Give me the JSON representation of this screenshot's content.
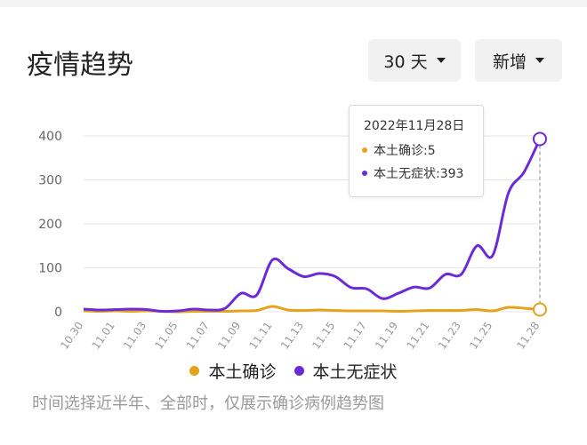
{
  "header": {
    "title": "疫情趋势",
    "range_label": "30 天",
    "type_label": "新增"
  },
  "tooltip": {
    "date": "2022年11月28日",
    "rows": [
      {
        "label": "本土确诊:5",
        "color": "#e5a21b"
      },
      {
        "label": "本土无症状:393",
        "color": "#6c2bd9"
      }
    ]
  },
  "legend": [
    {
      "label": "本土确诊",
      "color": "#e5a21b"
    },
    {
      "label": "本土无症状",
      "color": "#6c2bd9"
    }
  ],
  "footnote": "时间选择近半年、全部时，仅展示确诊病例趋势图",
  "chart_data": {
    "type": "line",
    "x": [
      "10.30",
      "10.31",
      "11.01",
      "11.02",
      "11.03",
      "11.04",
      "11.05",
      "11.06",
      "11.07",
      "11.08",
      "11.09",
      "11.10",
      "11.11",
      "11.12",
      "11.13",
      "11.14",
      "11.15",
      "11.16",
      "11.17",
      "11.18",
      "11.19",
      "11.20",
      "11.21",
      "11.22",
      "11.23",
      "11.24",
      "11.25",
      "11.26",
      "11.27",
      "11.28"
    ],
    "x_tick_labels": [
      "10.30",
      "11.01",
      "11.03",
      "11.05",
      "11.07",
      "11.09",
      "11.11",
      "11.13",
      "11.15",
      "11.17",
      "11.19",
      "11.21",
      "11.23",
      "11.25",
      "11.28"
    ],
    "ylim": [
      0,
      400
    ],
    "yticks": [
      0,
      100,
      200,
      300,
      400
    ],
    "grid": true,
    "legend_position": "bottom",
    "series": [
      {
        "name": "本土确诊",
        "color": "#e5a21b",
        "values": [
          2,
          1,
          2,
          1,
          2,
          1,
          0,
          1,
          1,
          1,
          2,
          3,
          12,
          4,
          3,
          4,
          3,
          2,
          2,
          2,
          1,
          2,
          3,
          3,
          3,
          5,
          2,
          10,
          8,
          5
        ]
      },
      {
        "name": "本土无症状",
        "color": "#6c2bd9",
        "values": [
          6,
          4,
          5,
          6,
          5,
          1,
          2,
          6,
          4,
          8,
          42,
          38,
          118,
          98,
          80,
          87,
          80,
          55,
          52,
          30,
          42,
          56,
          54,
          85,
          85,
          150,
          128,
          270,
          318,
          393
        ]
      }
    ]
  }
}
